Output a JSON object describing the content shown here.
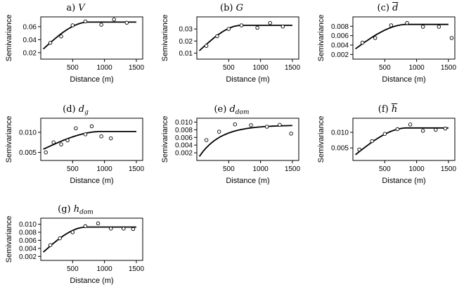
{
  "figure": {
    "xlabel": "Distance (m)",
    "ylabel": "Semivariance"
  },
  "chart_data": [
    {
      "type": "scatter",
      "title_prefix": "a)",
      "symbol": "V",
      "subscript": "",
      "overline": false,
      "xlabel": "Distance (m)",
      "ylabel": "Semivariance",
      "xlim": [
        0,
        1600
      ],
      "ylim": [
        0.01,
        0.075
      ],
      "xticks": [
        "500",
        "1000",
        "1500"
      ],
      "yticks": [
        "0.02",
        "0.04",
        "0.06"
      ],
      "points": [
        [
          150,
          0.035
        ],
        [
          320,
          0.045
        ],
        [
          500,
          0.062
        ],
        [
          700,
          0.068
        ],
        [
          950,
          0.063
        ],
        [
          1150,
          0.071
        ],
        [
          1350,
          0.066
        ]
      ],
      "model": {
        "nugget": 0.022,
        "sill": 0.067,
        "range": 750
      }
    },
    {
      "type": "scatter",
      "title_prefix": "(b)",
      "symbol": "G",
      "subscript": "",
      "overline": false,
      "xlabel": "Distance (m)",
      "ylabel": "Semivariance",
      "xlim": [
        0,
        1600
      ],
      "ylim": [
        0.005,
        0.04
      ],
      "xticks": [
        "500",
        "1000",
        "1500"
      ],
      "yticks": [
        "0.01",
        "0.02",
        "0.03"
      ],
      "points": [
        [
          150,
          0.016
        ],
        [
          320,
          0.024
        ],
        [
          500,
          0.03
        ],
        [
          700,
          0.033
        ],
        [
          950,
          0.031
        ],
        [
          1150,
          0.035
        ],
        [
          1350,
          0.032
        ]
      ],
      "model": {
        "nugget": 0.01,
        "sill": 0.033,
        "range": 700
      }
    },
    {
      "type": "scatter",
      "title_prefix": "(c)",
      "symbol": "d",
      "subscript": "",
      "overline": true,
      "xlabel": "Distance (m)",
      "ylabel": "Semivariance",
      "xlim": [
        0,
        1600
      ],
      "ylim": [
        0.001,
        0.01
      ],
      "xticks": [
        "500",
        "1000",
        "1500"
      ],
      "yticks": [
        "0.002",
        "0.004",
        "0.006",
        "0.008"
      ],
      "points": [
        [
          150,
          0.0045
        ],
        [
          350,
          0.0055
        ],
        [
          600,
          0.0082
        ],
        [
          850,
          0.0087
        ],
        [
          1100,
          0.0079
        ],
        [
          1350,
          0.0079
        ],
        [
          1550,
          0.0055
        ]
      ],
      "model": {
        "nugget": 0.0028,
        "sill": 0.0084,
        "range": 850
      }
    },
    {
      "type": "scatter",
      "title_prefix": "(d)",
      "symbol": "d",
      "subscript": "g",
      "overline": false,
      "xlabel": "Distance (m)",
      "ylabel": "Semivariance",
      "xlim": [
        0,
        1600
      ],
      "ylim": [
        0.003,
        0.0135
      ],
      "xticks": [
        "500",
        "1000",
        "1500"
      ],
      "yticks": [
        "0.005",
        "0.010"
      ],
      "points": [
        [
          80,
          0.005
        ],
        [
          200,
          0.0075
        ],
        [
          320,
          0.007
        ],
        [
          420,
          0.008
        ],
        [
          550,
          0.011
        ],
        [
          700,
          0.0095
        ],
        [
          800,
          0.0115
        ],
        [
          950,
          0.009
        ],
        [
          1100,
          0.0085
        ]
      ],
      "model": {
        "nugget": 0.0055,
        "sill": 0.0102,
        "range": 950
      }
    },
    {
      "type": "scatter",
      "title_prefix": "(e)",
      "symbol": "d",
      "subscript": "dom",
      "overline": false,
      "xlabel": "Distance (m)",
      "ylabel": "Semivariance",
      "xlim": [
        0,
        1600
      ],
      "ylim": [
        0,
        0.011
      ],
      "xticks": [
        "500",
        "1000",
        "1500"
      ],
      "yticks": [
        "0.002",
        "0.004",
        "0.006",
        "0.008",
        "0.010"
      ],
      "points": [
        [
          150,
          0.0053
        ],
        [
          350,
          0.0075
        ],
        [
          600,
          0.0094
        ],
        [
          850,
          0.0092
        ],
        [
          1100,
          0.0088
        ],
        [
          1300,
          0.0093
        ],
        [
          1480,
          0.007
        ]
      ],
      "model": {
        "nugget": 0.0,
        "sill": 0.0092,
        "range": 1000,
        "shape": "exponential"
      }
    },
    {
      "type": "scatter",
      "title_prefix": "(f)",
      "symbol": "h",
      "subscript": "",
      "overline": true,
      "xlabel": "Distance (m)",
      "ylabel": "Semivariance",
      "xlim": [
        0,
        1600
      ],
      "ylim": [
        0.001,
        0.0145
      ],
      "xticks": [
        "500",
        "1000",
        "1500"
      ],
      "yticks": [
        "0.005",
        "0.010"
      ],
      "points": [
        [
          100,
          0.0045
        ],
        [
          300,
          0.0072
        ],
        [
          500,
          0.0095
        ],
        [
          700,
          0.011
        ],
        [
          900,
          0.0125
        ],
        [
          1100,
          0.0105
        ],
        [
          1300,
          0.0108
        ],
        [
          1450,
          0.0112
        ]
      ],
      "model": {
        "nugget": 0.0022,
        "sill": 0.0114,
        "range": 850
      }
    },
    {
      "type": "scatter",
      "title_prefix": "(g)",
      "symbol": "h",
      "subscript": "dom",
      "overline": false,
      "xlabel": "Distance (m)",
      "ylabel": "Semivariance",
      "xlim": [
        0,
        1600
      ],
      "ylim": [
        0.001,
        0.0115
      ],
      "xticks": [
        "500",
        "1000",
        "1500"
      ],
      "yticks": [
        "0.002",
        "0.004",
        "0.006",
        "0.008",
        "0.010"
      ],
      "points": [
        [
          150,
          0.0048
        ],
        [
          300,
          0.0065
        ],
        [
          500,
          0.008
        ],
        [
          700,
          0.0095
        ],
        [
          900,
          0.0102
        ],
        [
          1100,
          0.0089
        ],
        [
          1300,
          0.0089
        ],
        [
          1450,
          0.0088
        ]
      ],
      "model": {
        "nugget": 0.0025,
        "sill": 0.0093,
        "range": 720
      }
    }
  ]
}
